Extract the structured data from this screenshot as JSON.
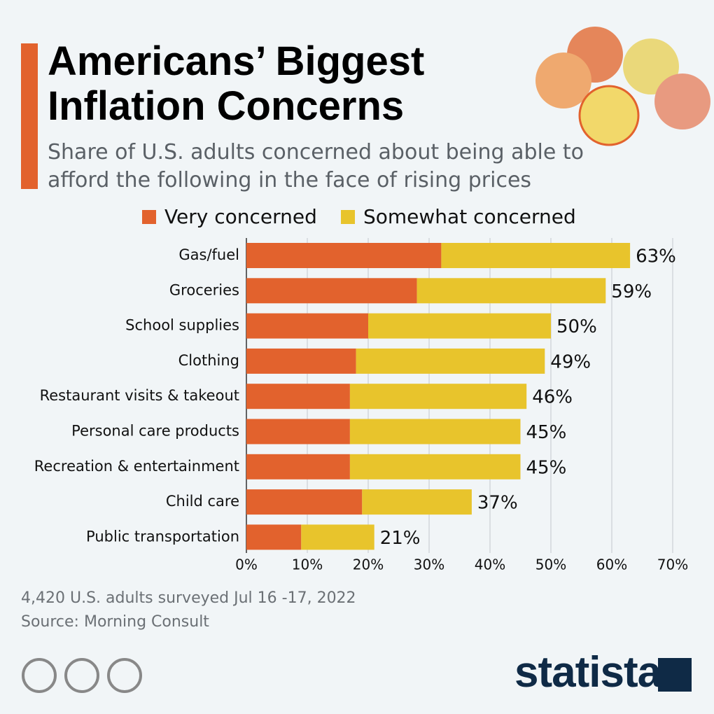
{
  "title": "Americans’ Biggest Inflation Concerns",
  "subtitle": "Share of U.S. adults concerned about being able to afford the following in the face of rising prices",
  "note": "4,420 U.S. adults surveyed Jul 16 -17, 2022",
  "source": "Source: Morning Consult",
  "brand": "statista",
  "chart_data": {
    "type": "bar",
    "orientation": "horizontal",
    "stacked": true,
    "categories": [
      "Gas/fuel",
      "Groceries",
      "School supplies",
      "Clothing",
      "Restaurant visits & takeout",
      "Personal care products",
      "Recreation & entertainment",
      "Child care",
      "Public transportation"
    ],
    "series": [
      {
        "name": "Very concerned",
        "color": "#e2622d",
        "values": [
          32,
          28,
          20,
          18,
          17,
          17,
          17,
          19,
          9
        ]
      },
      {
        "name": "Somewhat concerned",
        "color": "#e8c42c",
        "values": [
          31,
          31,
          30,
          31,
          29,
          28,
          28,
          18,
          12
        ]
      }
    ],
    "total_labels": [
      "63%",
      "59%",
      "50%",
      "49%",
      "46%",
      "45%",
      "45%",
      "37%",
      "21%"
    ],
    "xlim": [
      0,
      70
    ],
    "xticks": [
      {
        "value": 0,
        "label": "0%"
      },
      {
        "value": 10,
        "label": "10%"
      },
      {
        "value": 20,
        "label": "20%"
      },
      {
        "value": 30,
        "label": "30%"
      },
      {
        "value": 40,
        "label": "40%"
      },
      {
        "value": 50,
        "label": "50%"
      },
      {
        "value": 60,
        "label": "60%"
      },
      {
        "value": 70,
        "label": "70%"
      }
    ],
    "grid": true
  }
}
